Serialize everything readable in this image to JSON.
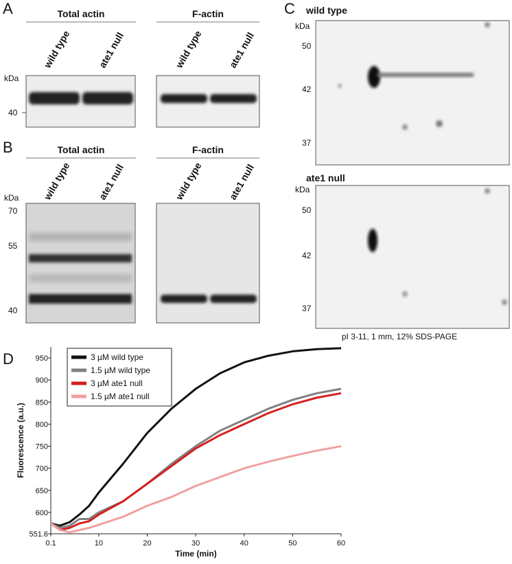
{
  "panel_a": {
    "label": "A",
    "gels": [
      {
        "title": "Total actin",
        "lanes": [
          "wild type",
          "ate1 null"
        ]
      },
      {
        "title": "F-actin",
        "lanes": [
          "wild type",
          "ate1 null"
        ]
      }
    ],
    "unit": "kDa",
    "markers": [
      40
    ]
  },
  "panel_b": {
    "label": "B",
    "gels": [
      {
        "title": "Total actin",
        "lanes": [
          "wild type",
          "ate1 null"
        ]
      },
      {
        "title": "F-actin",
        "lanes": [
          "wild type",
          "ate1 null"
        ]
      }
    ],
    "unit": "kDa",
    "markers": [
      70,
      55,
      40
    ]
  },
  "panel_c": {
    "label": "C",
    "gels": [
      {
        "title": "wild type",
        "unit": "kDa",
        "markers": [
          50,
          42,
          37
        ]
      },
      {
        "title": "ate1 null",
        "unit": "kDa",
        "markers": [
          50,
          42,
          37
        ]
      }
    ],
    "caption": "pI 3-11, 1 mm, 12% SDS-PAGE"
  },
  "panel_d": {
    "label": "D"
  },
  "chart_data": {
    "type": "line",
    "x_label": "Time (min)",
    "y_label": "Fluorescence (a.u.)",
    "x": [
      0.1,
      2,
      4,
      6,
      8,
      10,
      15,
      20,
      25,
      30,
      35,
      40,
      45,
      50,
      55,
      60
    ],
    "series": [
      {
        "name": "3 µM wild type",
        "color": "#111111",
        "values": [
          575,
          570,
          578,
          595,
          615,
          645,
          710,
          780,
          835,
          880,
          915,
          940,
          955,
          965,
          970,
          972
        ]
      },
      {
        "name": "1.5 µM wild type",
        "color": "#808080",
        "values": [
          575,
          565,
          570,
          585,
          585,
          600,
          625,
          665,
          710,
          750,
          785,
          810,
          835,
          855,
          870,
          880
        ]
      },
      {
        "name": "3 µM ate1 null",
        "color": "#d42020",
        "values": [
          575,
          560,
          565,
          575,
          580,
          595,
          625,
          665,
          705,
          745,
          775,
          800,
          825,
          845,
          860,
          870
        ]
      },
      {
        "name": "1.5 µM ate1 null",
        "color": "#f0a0a0",
        "values": [
          575,
          560,
          555,
          560,
          565,
          572,
          590,
          615,
          635,
          660,
          680,
          700,
          715,
          728,
          740,
          750
        ]
      }
    ],
    "xlim": [
      0.1,
      60
    ],
    "xticks": [
      0.1,
      10,
      20,
      30,
      40,
      50,
      60
    ],
    "ylim": [
      551.6,
      975
    ],
    "yticks": [
      551.6,
      600,
      650,
      700,
      750,
      800,
      850,
      900,
      950
    ],
    "legend": "upper left"
  }
}
